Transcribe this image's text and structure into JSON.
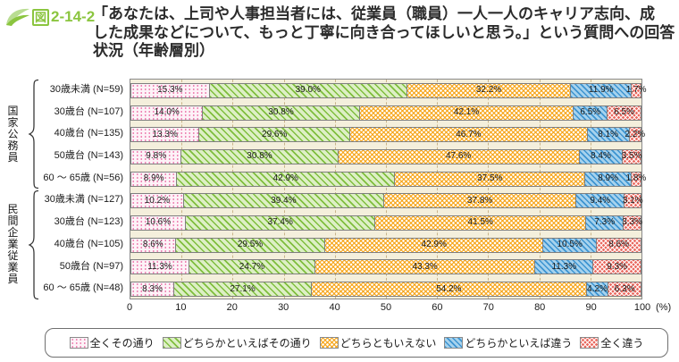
{
  "figure": {
    "badge_fig": "図",
    "badge_number": "2-14-2",
    "title_lines": [
      "「あなたは、上司や人事担当者には、従業員（職員）一人一人のキャリア志向、成",
      "した成果などについて、もっと丁寧に向き合ってほしいと思う。」という質問への回答",
      "状況（年齢層別）"
    ]
  },
  "chart_data": {
    "type": "bar",
    "stacked": true,
    "orientation": "horizontal",
    "title": "「あなたは、上司や人事担当者には、従業員（職員）一人一人のキャリア志向、成した成果などについて、もっと丁寧に向き合ってほしいと思う。」という質問への回答状況（年齢層別）",
    "unit": "%",
    "xlim": [
      0,
      100
    ],
    "x_ticks": [
      0,
      10,
      20,
      30,
      40,
      50,
      60,
      70,
      80,
      90,
      100
    ],
    "x_axis_suffix": "(%)",
    "grid": "dashed-vertical-10pct",
    "legend_position": "bottom",
    "series_labels": [
      "全くその通り",
      "どちらかといえばその通り",
      "どちらともいえない",
      "どちらかといえば違う",
      "全く違う"
    ],
    "groups": [
      {
        "name": "国家公務員",
        "rows": [
          {
            "label": "30歳未満 (N=59)",
            "values": [
              15.3,
              39.0,
              32.2,
              11.9,
              1.7
            ]
          },
          {
            "label": "30歳台 (N=107)",
            "values": [
              14.0,
              30.8,
              42.1,
              6.5,
              6.5
            ]
          },
          {
            "label": "40歳台 (N=135)",
            "values": [
              13.3,
              29.6,
              46.7,
              8.1,
              2.2
            ]
          },
          {
            "label": "50歳台 (N=143)",
            "values": [
              9.8,
              30.8,
              47.6,
              8.4,
              3.5
            ]
          },
          {
            "label": "60 ～ 65歳 (N=56)",
            "values": [
              8.9,
              42.9,
              37.5,
              8.9,
              1.8
            ]
          }
        ]
      },
      {
        "name": "民間企業従業員",
        "rows": [
          {
            "label": "30歳未満 (N=127)",
            "values": [
              10.2,
              39.4,
              37.8,
              9.4,
              3.1
            ]
          },
          {
            "label": "30歳台 (N=123)",
            "values": [
              10.6,
              37.4,
              41.5,
              7.3,
              3.3
            ]
          },
          {
            "label": "40歳台 (N=105)",
            "values": [
              8.6,
              29.5,
              42.9,
              10.5,
              8.6
            ]
          },
          {
            "label": "50歳台 (N=97)",
            "values": [
              11.3,
              24.7,
              43.3,
              11.3,
              9.3
            ]
          },
          {
            "label": "60 ～ 65歳 (N=48)",
            "values": [
              8.3,
              27.1,
              54.2,
              4.2,
              6.3
            ]
          }
        ]
      }
    ],
    "colors": {
      "accent_green": "#8BC53F",
      "pattern_dot_pink": "#EE86B5",
      "pattern_stripe_green": "#7FBE3D",
      "pattern_orange": "#F7A71F",
      "pattern_stripe_blue": "#3D94D1",
      "pattern_check_red": "#E96A60",
      "plot_background": "#F4EFDC",
      "gridline": "#C9B489"
    }
  }
}
